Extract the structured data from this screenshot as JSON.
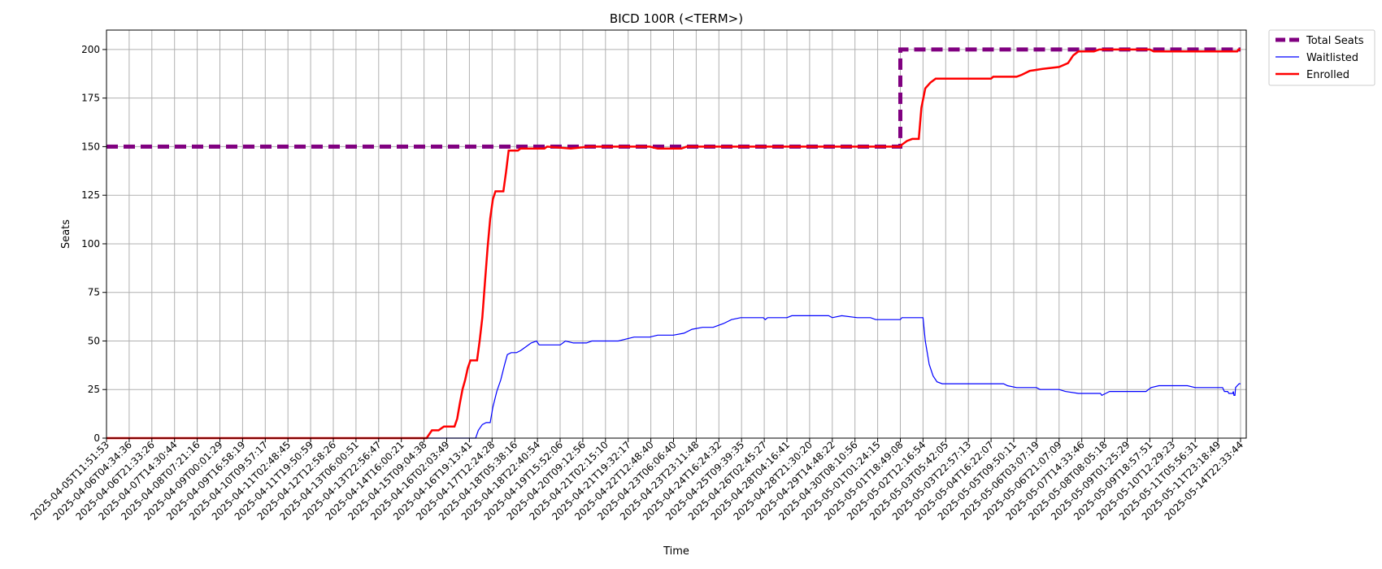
{
  "chart_data": {
    "type": "line",
    "title": "BICD 100R (<TERM>)",
    "xlabel": "Time",
    "ylabel": "Seats",
    "ylim": [
      0,
      210
    ],
    "y_ticks": [
      0,
      25,
      50,
      75,
      100,
      125,
      150,
      175,
      200
    ],
    "grid": true,
    "legend_position": "outside-top-right",
    "x_tick_labels": [
      "2025-04-05T11:51:53",
      "2025-04-06T04:34:36",
      "2025-04-06T21:33:26",
      "2025-04-07T14:30:44",
      "2025-04-08T07:21:16",
      "2025-04-09T00:01:29",
      "2025-04-09T16:58:19",
      "2025-04-10T09:57:17",
      "2025-04-11T02:48:45",
      "2025-04-11T19:50:59",
      "2025-04-12T12:58:26",
      "2025-04-13T06:00:51",
      "2025-04-13T22:56:47",
      "2025-04-14T16:00:21",
      "2025-04-15T09:04:38",
      "2025-04-16T02:03:49",
      "2025-04-16T19:13:41",
      "2025-04-17T12:24:28",
      "2025-04-18T05:38:16",
      "2025-04-18T22:40:54",
      "2025-04-19T15:52:06",
      "2025-04-20T09:12:56",
      "2025-04-21T02:15:10",
      "2025-04-21T19:32:17",
      "2025-04-22T12:48:40",
      "2025-04-23T06:06:40",
      "2025-04-23T23:11:48",
      "2025-04-24T16:24:32",
      "2025-04-25T09:39:35",
      "2025-04-26T02:45:27",
      "2025-04-28T04:16:41",
      "2025-04-28T21:30:20",
      "2025-04-29T14:48:22",
      "2025-04-30T08:10:56",
      "2025-05-01T01:24:15",
      "2025-05-01T18:49:08",
      "2025-05-02T12:16:54",
      "2025-05-03T05:42:05",
      "2025-05-03T22:57:13",
      "2025-05-04T16:22:07",
      "2025-05-05T09:50:11",
      "2025-05-06T03:07:19",
      "2025-05-06T21:07:09",
      "2025-05-07T14:33:46",
      "2025-05-08T08:05:18",
      "2025-05-09T01:25:29",
      "2025-05-09T18:57:51",
      "2025-05-10T12:29:23",
      "2025-05-11T05:56:31",
      "2025-05-11T23:18:49",
      "2025-05-14T22:33:44"
    ],
    "series": [
      {
        "name": "Total Seats",
        "color": "#800080",
        "style": "dashed",
        "points": [
          [
            "2025-04-05T11:51:53",
            150
          ],
          [
            "2025-05-01T18:49:08",
            150
          ],
          [
            "2025-05-01T18:49:08",
            200
          ],
          [
            "2025-05-14T22:33:44",
            200
          ]
        ]
      },
      {
        "name": "Waitlisted",
        "color": "#0000ff",
        "style": "solid",
        "points": [
          [
            "2025-04-05T11:51:53",
            0
          ],
          [
            "2025-04-17T00:00:00",
            0
          ],
          [
            "2025-04-17T02:00:00",
            4
          ],
          [
            "2025-04-17T05:00:00",
            7
          ],
          [
            "2025-04-17T08:00:00",
            8
          ],
          [
            "2025-04-17T11:00:00",
            8
          ],
          [
            "2025-04-17T13:00:00",
            16
          ],
          [
            "2025-04-17T16:00:00",
            24
          ],
          [
            "2025-04-17T19:00:00",
            30
          ],
          [
            "2025-04-17T22:00:00",
            38
          ],
          [
            "2025-04-18T00:00:00",
            43
          ],
          [
            "2025-04-18T03:00:00",
            44
          ],
          [
            "2025-04-18T07:00:00",
            44
          ],
          [
            "2025-04-18T10:00:00",
            45
          ],
          [
            "2025-04-18T14:00:00",
            47
          ],
          [
            "2025-04-18T18:00:00",
            49
          ],
          [
            "2025-04-18T22:00:00",
            50
          ],
          [
            "2025-04-19T00:00:00",
            48
          ],
          [
            "2025-04-19T16:00:00",
            48
          ],
          [
            "2025-04-19T20:00:00",
            50
          ],
          [
            "2025-04-20T02:00:00",
            49
          ],
          [
            "2025-04-20T12:00:00",
            49
          ],
          [
            "2025-04-20T16:00:00",
            50
          ],
          [
            "2025-04-20T23:00:00",
            50
          ],
          [
            "2025-04-21T12:00:00",
            50
          ],
          [
            "2025-04-22T00:00:00",
            52
          ],
          [
            "2025-04-22T12:00:00",
            52
          ],
          [
            "2025-04-22T18:00:00",
            53
          ],
          [
            "2025-04-23T06:00:00",
            53
          ],
          [
            "2025-04-23T14:00:00",
            54
          ],
          [
            "2025-04-23T20:00:00",
            56
          ],
          [
            "2025-04-24T04:00:00",
            57
          ],
          [
            "2025-04-24T12:00:00",
            57
          ],
          [
            "2025-04-24T20:00:00",
            59
          ],
          [
            "2025-04-25T02:00:00",
            61
          ],
          [
            "2025-04-25T09:00:00",
            62
          ],
          [
            "2025-04-26T02:00:00",
            62
          ],
          [
            "2025-04-26T05:00:00",
            61
          ],
          [
            "2025-04-26T10:00:00",
            62
          ],
          [
            "2025-04-28T04:16:41",
            62
          ],
          [
            "2025-04-28T08:00:00",
            63
          ],
          [
            "2025-04-29T12:00:00",
            63
          ],
          [
            "2025-04-29T14:48:22",
            62
          ],
          [
            "2025-04-29T22:00:00",
            63
          ],
          [
            "2025-04-30T10:00:00",
            62
          ],
          [
            "2025-04-30T20:00:00",
            62
          ],
          [
            "2025-05-01T00:00:00",
            61
          ],
          [
            "2025-05-01T18:49:08",
            61
          ],
          [
            "2025-05-01T20:00:00",
            62
          ],
          [
            "2025-05-02T12:16:54",
            62
          ],
          [
            "2025-05-02T14:00:00",
            50
          ],
          [
            "2025-05-02T17:00:00",
            38
          ],
          [
            "2025-05-02T20:00:00",
            32
          ],
          [
            "2025-05-02T23:00:00",
            29
          ],
          [
            "2025-05-03T03:00:00",
            28
          ],
          [
            "2025-05-05T02:00:00",
            28
          ],
          [
            "2025-05-05T05:00:00",
            27
          ],
          [
            "2025-05-05T12:00:00",
            26
          ],
          [
            "2025-05-06T03:07:19",
            26
          ],
          [
            "2025-05-06T06:00:00",
            25
          ],
          [
            "2025-05-06T21:07:09",
            25
          ],
          [
            "2025-05-07T02:00:00",
            24
          ],
          [
            "2025-05-07T12:00:00",
            23
          ],
          [
            "2025-05-08T05:00:00",
            23
          ],
          [
            "2025-05-08T06:00:00",
            22
          ],
          [
            "2025-05-08T09:00:00",
            23
          ],
          [
            "2025-05-08T12:00:00",
            24
          ],
          [
            "2025-05-09T16:00:00",
            24
          ],
          [
            "2025-05-09T20:00:00",
            26
          ],
          [
            "2025-05-10T02:00:00",
            27
          ],
          [
            "2025-05-10T10:00:00",
            27
          ],
          [
            "2025-05-11T00:00:00",
            27
          ],
          [
            "2025-05-11T05:56:31",
            26
          ],
          [
            "2025-05-12T14:00:00",
            26
          ],
          [
            "2025-05-12T17:00:00",
            25
          ],
          [
            "2025-05-12T20:00:00",
            24
          ],
          [
            "2025-05-13T06:00:00",
            24
          ],
          [
            "2025-05-13T10:00:00",
            23
          ],
          [
            "2025-05-13T22:00:00",
            23
          ],
          [
            "2025-05-14T00:00:00",
            24
          ],
          [
            "2025-05-14T02:00:00",
            22
          ],
          [
            "2025-05-14T05:00:00",
            22
          ],
          [
            "2025-05-14T07:00:00",
            26
          ],
          [
            "2025-05-14T12:00:00",
            27
          ],
          [
            "2025-05-14T18:00:00",
            28
          ],
          [
            "2025-05-14T22:33:44",
            28
          ]
        ]
      },
      {
        "name": "Enrolled",
        "color": "#ff0000",
        "style": "solid",
        "points": [
          [
            "2025-04-05T11:51:53",
            0
          ],
          [
            "2025-04-15T11:00:00",
            0
          ],
          [
            "2025-04-15T13:00:00",
            2
          ],
          [
            "2025-04-15T15:00:00",
            4
          ],
          [
            "2025-04-15T20:00:00",
            4
          ],
          [
            "2025-04-15T22:00:00",
            5
          ],
          [
            "2025-04-16T00:00:00",
            6
          ],
          [
            "2025-04-16T08:00:00",
            6
          ],
          [
            "2025-04-16T10:00:00",
            10
          ],
          [
            "2025-04-16T12:00:00",
            18
          ],
          [
            "2025-04-16T14:00:00",
            25
          ],
          [
            "2025-04-16T16:00:00",
            30
          ],
          [
            "2025-04-16T18:00:00",
            36
          ],
          [
            "2025-04-16T20:00:00",
            40
          ],
          [
            "2025-04-17T01:00:00",
            40
          ],
          [
            "2025-04-17T03:00:00",
            50
          ],
          [
            "2025-04-17T05:00:00",
            62
          ],
          [
            "2025-04-17T07:00:00",
            80
          ],
          [
            "2025-04-17T09:00:00",
            98
          ],
          [
            "2025-04-17T11:00:00",
            113
          ],
          [
            "2025-04-17T13:00:00",
            123
          ],
          [
            "2025-04-17T15:00:00",
            127
          ],
          [
            "2025-04-17T21:00:00",
            127
          ],
          [
            "2025-04-17T23:00:00",
            137
          ],
          [
            "2025-04-18T01:00:00",
            148
          ],
          [
            "2025-04-18T08:00:00",
            148
          ],
          [
            "2025-04-18T10:00:00",
            149
          ],
          [
            "2025-04-19T04:00:00",
            149
          ],
          [
            "2025-04-19T06:00:00",
            150
          ],
          [
            "2025-04-20T00:00:00",
            149
          ],
          [
            "2025-04-20T14:00:00",
            150
          ],
          [
            "2025-04-22T12:00:00",
            150
          ],
          [
            "2025-04-22T18:00:00",
            149
          ],
          [
            "2025-04-23T12:00:00",
            149
          ],
          [
            "2025-04-23T16:00:00",
            150
          ],
          [
            "2025-05-01T18:49:08",
            150
          ],
          [
            "2025-05-01T20:00:00",
            151
          ],
          [
            "2025-05-02T00:00:00",
            153
          ],
          [
            "2025-05-02T04:00:00",
            154
          ],
          [
            "2025-05-02T09:00:00",
            154
          ],
          [
            "2025-05-02T11:00:00",
            170
          ],
          [
            "2025-05-02T14:00:00",
            180
          ],
          [
            "2025-05-02T18:00:00",
            183
          ],
          [
            "2025-05-02T22:00:00",
            185
          ],
          [
            "2025-05-04T16:22:07",
            185
          ],
          [
            "2025-05-04T18:00:00",
            186
          ],
          [
            "2025-05-05T12:00:00",
            186
          ],
          [
            "2025-05-05T16:00:00",
            187
          ],
          [
            "2025-05-05T22:00:00",
            189
          ],
          [
            "2025-05-06T08:00:00",
            190
          ],
          [
            "2025-05-06T21:07:09",
            191
          ],
          [
            "2025-05-07T04:00:00",
            193
          ],
          [
            "2025-05-07T08:00:00",
            197
          ],
          [
            "2025-05-07T12:00:00",
            199
          ],
          [
            "2025-05-08T00:00:00",
            199
          ],
          [
            "2025-05-08T04:00:00",
            200
          ],
          [
            "2025-05-09T18:57:51",
            200
          ],
          [
            "2025-05-09T22:00:00",
            199
          ],
          [
            "2025-05-14T12:00:00",
            199
          ],
          [
            "2025-05-14T16:00:00",
            200
          ],
          [
            "2025-05-14T22:33:44",
            200
          ]
        ]
      }
    ]
  }
}
